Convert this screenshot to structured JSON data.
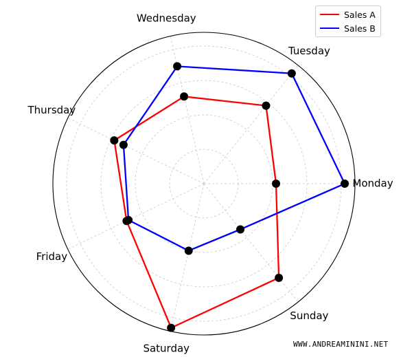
{
  "chart_data": {
    "type": "radar",
    "categories": [
      "Monday",
      "Tuesday",
      "Wednesday",
      "Thursday",
      "Friday",
      "Saturday",
      "Sunday"
    ],
    "series": [
      {
        "name": "Sales A",
        "color": "#ff0000",
        "values": [
          105,
          145,
          130,
          145,
          125,
          215,
          175
        ]
      },
      {
        "name": "Sales B",
        "color": "#0000ff",
        "values": [
          205,
          205,
          175,
          130,
          122,
          100,
          85
        ]
      }
    ],
    "rmax": 220,
    "rgrid": [
      50,
      100,
      150,
      200
    ],
    "grid": true,
    "legend": "top-right",
    "marker_color": "#000000"
  },
  "watermark": "WWW.ANDREAMININI.NET"
}
